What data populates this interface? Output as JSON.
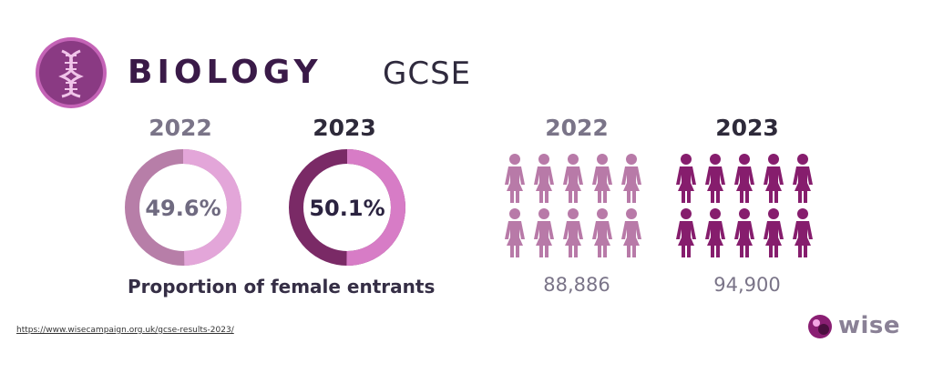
{
  "header": {
    "subject": "BIOLOGY",
    "level": "GCSE",
    "icon": "dna-icon"
  },
  "colors": {
    "year_2022_light": "#e3a6d9",
    "year_2022_dark": "#b77ea8",
    "year_2023_light": "#d77cc6",
    "year_2023_dark": "#7a2a66",
    "people_2022": "#b87aa8",
    "people_2023": "#861d6d",
    "logo_fill": "#8a3a83",
    "logo_ring": "#c463b6"
  },
  "chart_data": [
    {
      "type": "pie",
      "title": "",
      "caption": "Proportion of female entrants",
      "series": [
        {
          "name": "2022",
          "value": 49.6,
          "label": "49.6%"
        },
        {
          "name": "2023",
          "value": 50.1,
          "label": "50.1%"
        }
      ]
    },
    {
      "type": "bar",
      "title": "",
      "icon": "person-icon",
      "categories": [
        "2022",
        "2023"
      ],
      "values": [
        88886,
        94900
      ],
      "labels": [
        "88,886",
        "94,900"
      ]
    }
  ],
  "footer": {
    "source_link": "https://www.wisecampaign.org.uk/gcse-results-2023/",
    "brand": "wise"
  }
}
